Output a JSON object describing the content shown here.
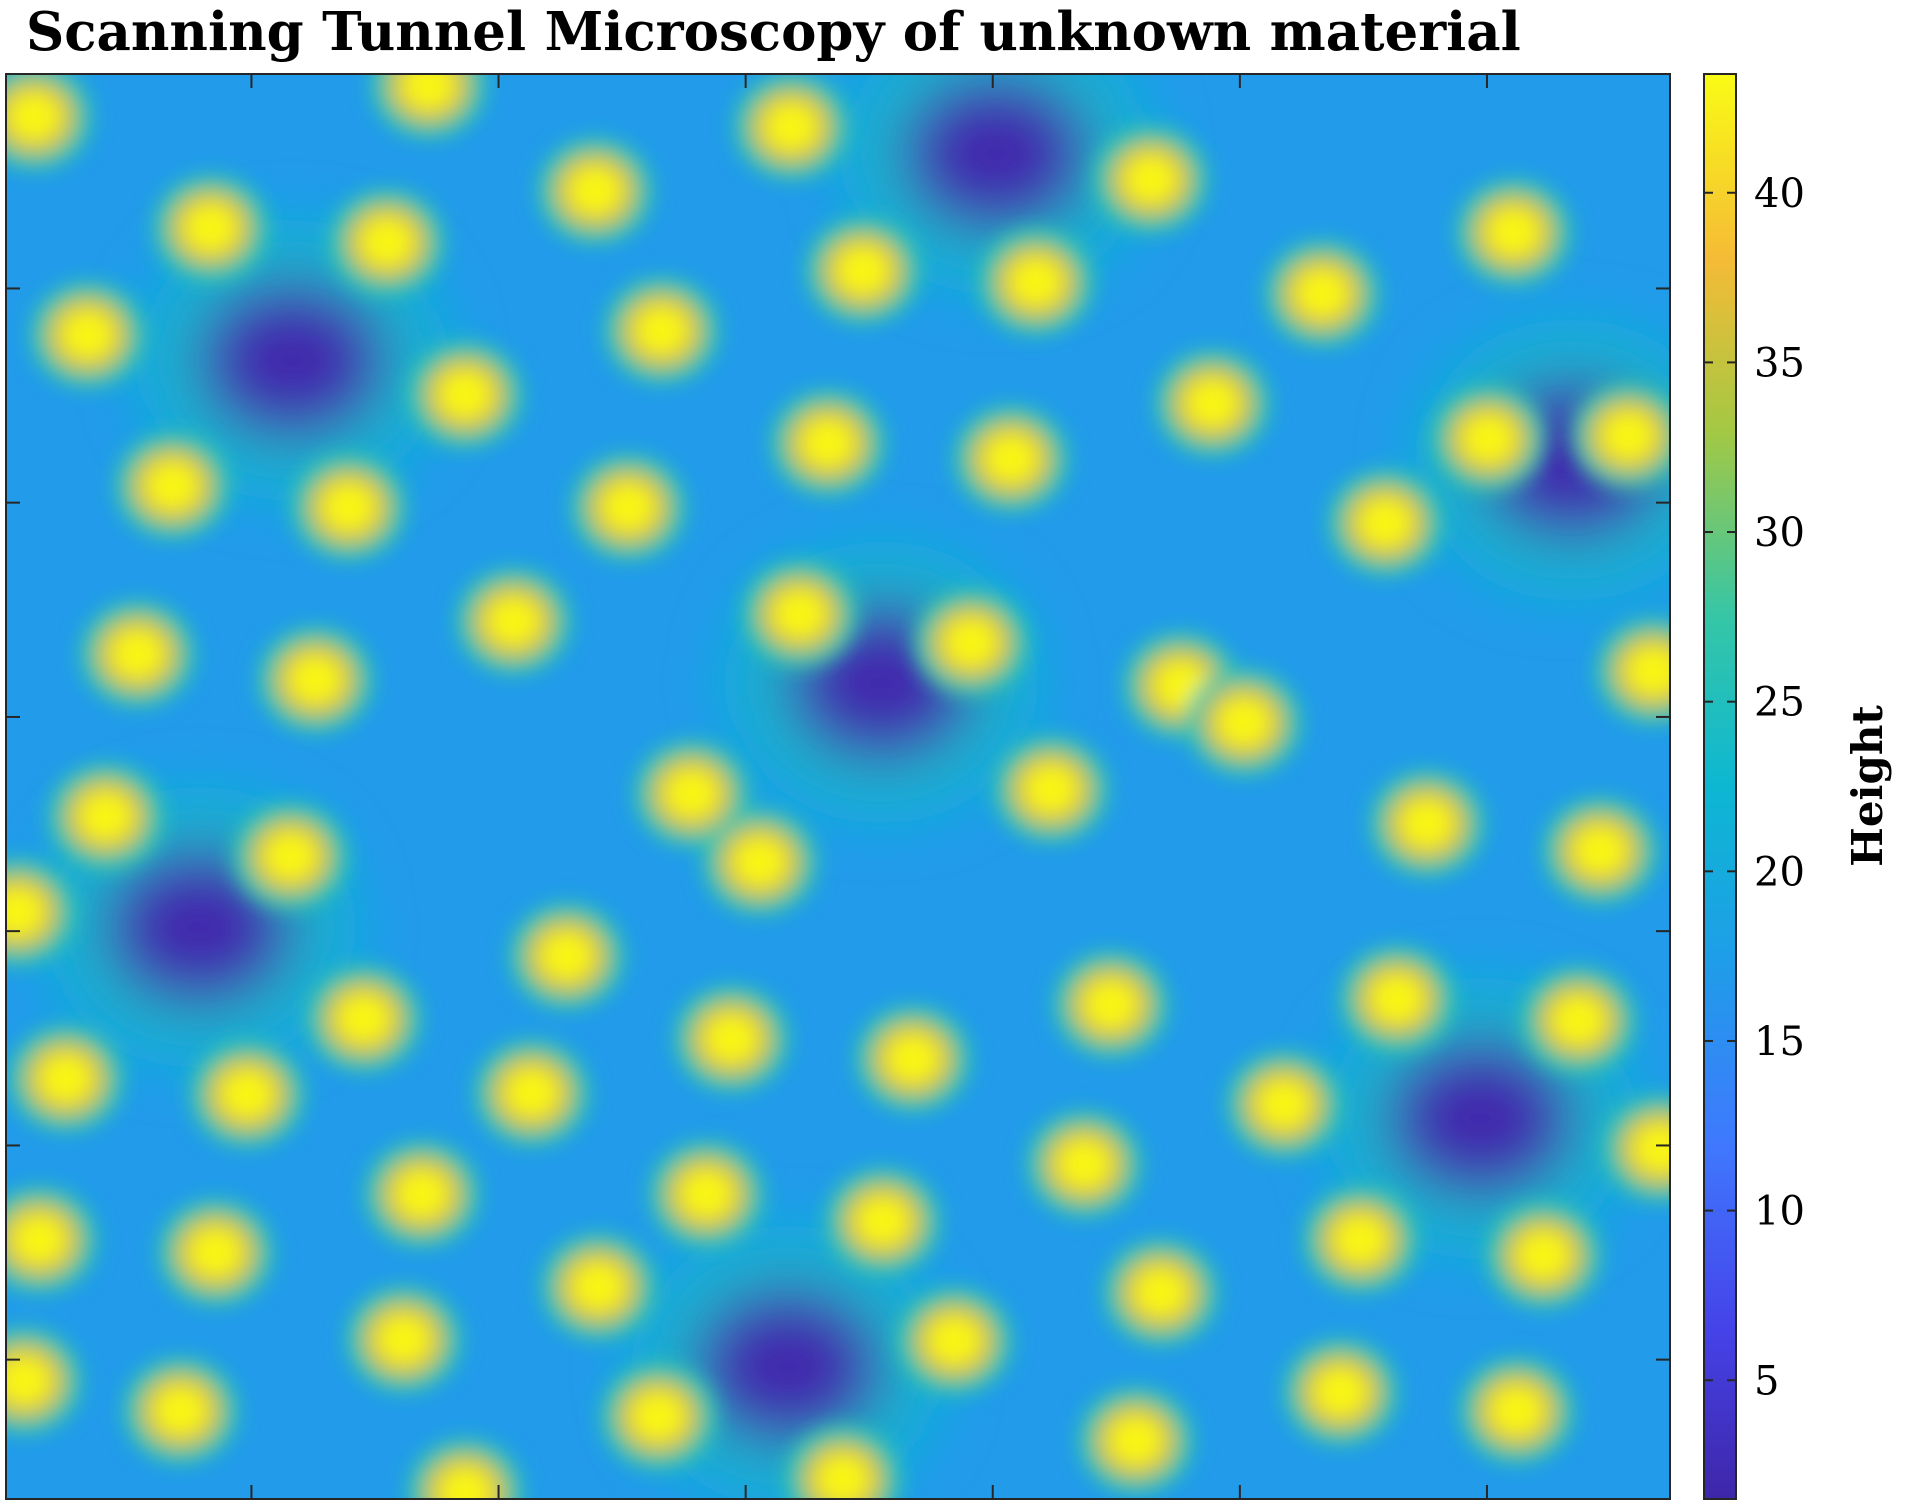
{
  "chart_data": {
    "type": "heatmap",
    "title": "Scanning Tunnel Microscopy of unknown material",
    "xlabel": "",
    "ylabel": "",
    "colorbar": {
      "label": "Height",
      "ticks": [
        5,
        10,
        15,
        20,
        25,
        30,
        35,
        40
      ],
      "range": [
        1.5,
        43.5
      ],
      "colormap": "parula"
    },
    "axes": {
      "x_tick_labels": false,
      "y_tick_labels": false,
      "grid": false
    },
    "peak_height": 43,
    "pit_height": 2,
    "surface_height": 17,
    "colormap_stops": [
      {
        "v": 0.0,
        "c": "#3e26a8"
      },
      {
        "v": 0.12,
        "c": "#4543e9"
      },
      {
        "v": 0.25,
        "c": "#3f79fe"
      },
      {
        "v": 0.38,
        "c": "#1e9ee8"
      },
      {
        "v": 0.5,
        "c": "#0db7d2"
      },
      {
        "v": 0.62,
        "c": "#36c6a6"
      },
      {
        "v": 0.75,
        "c": "#a4c843"
      },
      {
        "v": 0.87,
        "c": "#f5bb36"
      },
      {
        "v": 1.0,
        "c": "#f9fb15"
      }
    ],
    "pits": [
      [
        0.595,
        0.056
      ],
      [
        0.172,
        0.201
      ],
      [
        0.941,
        0.271
      ],
      [
        0.526,
        0.427
      ],
      [
        0.116,
        0.599
      ],
      [
        0.886,
        0.733
      ],
      [
        0.47,
        0.907
      ]
    ],
    "peaks": [
      [
        0.017,
        0.03
      ],
      [
        0.254,
        0.008
      ],
      [
        0.472,
        0.037
      ],
      [
        0.354,
        0.082
      ],
      [
        0.688,
        0.074
      ],
      [
        0.123,
        0.108
      ],
      [
        0.229,
        0.118
      ],
      [
        0.906,
        0.111
      ],
      [
        0.515,
        0.138
      ],
      [
        0.619,
        0.146
      ],
      [
        0.791,
        0.154
      ],
      [
        0.049,
        0.183
      ],
      [
        0.394,
        0.18
      ],
      [
        0.276,
        0.225
      ],
      [
        0.725,
        0.231
      ],
      [
        0.975,
        0.254
      ],
      [
        0.494,
        0.259
      ],
      [
        0.604,
        0.27
      ],
      [
        0.891,
        0.256
      ],
      [
        0.1,
        0.289
      ],
      [
        0.206,
        0.304
      ],
      [
        0.374,
        0.304
      ],
      [
        0.829,
        0.315
      ],
      [
        0.079,
        0.407
      ],
      [
        0.186,
        0.425
      ],
      [
        0.305,
        0.384
      ],
      [
        0.477,
        0.379
      ],
      [
        0.58,
        0.399
      ],
      [
        0.706,
        0.429
      ],
      [
        0.99,
        0.419
      ],
      [
        0.412,
        0.505
      ],
      [
        0.628,
        0.502
      ],
      [
        0.744,
        0.455
      ],
      [
        0.06,
        0.521
      ],
      [
        0.171,
        0.549
      ],
      [
        0.453,
        0.553
      ],
      [
        0.854,
        0.526
      ],
      [
        0.958,
        0.545
      ],
      [
        0.007,
        0.588
      ],
      [
        0.337,
        0.619
      ],
      [
        0.215,
        0.663
      ],
      [
        0.436,
        0.677
      ],
      [
        0.664,
        0.653
      ],
      [
        0.036,
        0.705
      ],
      [
        0.145,
        0.716
      ],
      [
        0.316,
        0.715
      ],
      [
        0.545,
        0.691
      ],
      [
        0.836,
        0.649
      ],
      [
        0.945,
        0.664
      ],
      [
        0.768,
        0.723
      ],
      [
        0.648,
        0.765
      ],
      [
        0.994,
        0.754
      ],
      [
        0.25,
        0.786
      ],
      [
        0.02,
        0.818
      ],
      [
        0.126,
        0.827
      ],
      [
        0.421,
        0.786
      ],
      [
        0.527,
        0.805
      ],
      [
        0.814,
        0.818
      ],
      [
        0.924,
        0.829
      ],
      [
        0.356,
        0.851
      ],
      [
        0.694,
        0.855
      ],
      [
        0.239,
        0.888
      ],
      [
        0.57,
        0.889
      ],
      [
        0.105,
        0.938
      ],
      [
        0.011,
        0.917
      ],
      [
        0.392,
        0.942
      ],
      [
        0.802,
        0.925
      ],
      [
        0.908,
        0.938
      ],
      [
        0.679,
        0.959
      ],
      [
        0.276,
        0.995
      ],
      [
        0.503,
        0.986
      ]
    ]
  }
}
